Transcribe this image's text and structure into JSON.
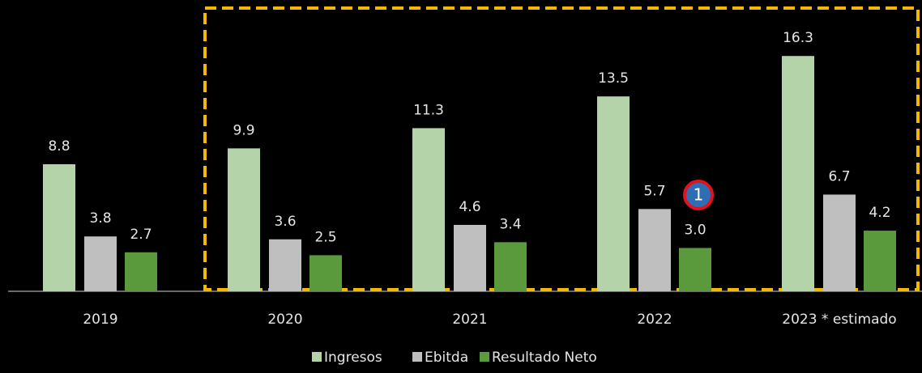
{
  "chart_data": {
    "type": "bar",
    "categories": [
      "2019",
      "2020",
      "2021",
      "2022",
      "2023 * estimado"
    ],
    "series": [
      {
        "name": "Ingresos",
        "color": "#b5d3a8",
        "values": [
          8.8,
          9.9,
          11.3,
          13.5,
          16.3
        ]
      },
      {
        "name": "Ebitda",
        "color": "#bfbfbf",
        "values": [
          3.8,
          3.6,
          4.6,
          5.7,
          6.7
        ]
      },
      {
        "name": "Resultado Neto",
        "color": "#5b9a3c",
        "values": [
          2.7,
          2.5,
          3.4,
          3.0,
          4.2
        ]
      }
    ],
    "value_labels": [
      [
        "8.8",
        "9.9",
        "11.3",
        "13.5",
        "16.3"
      ],
      [
        "3.8",
        "3.6",
        "4.6",
        "5.7",
        "6.7"
      ],
      [
        "2.7",
        "2.5",
        "3.4",
        "3.0",
        "4.2"
      ]
    ],
    "ylim": [
      0,
      20
    ],
    "legend": "bottom",
    "annotation": "1"
  }
}
